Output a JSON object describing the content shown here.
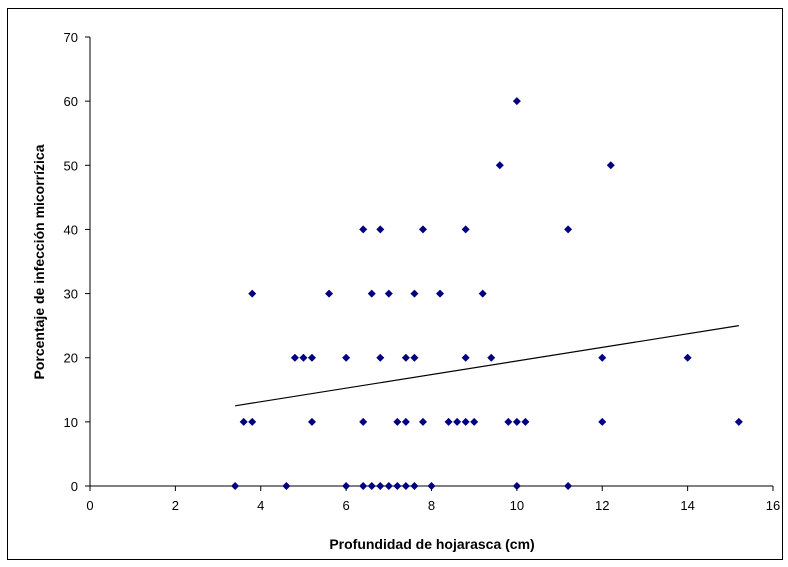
{
  "chart_data": {
    "type": "scatter",
    "xlabel": "Profundidad de hojarasca (cm)",
    "ylabel": "Porcentaje de infección micorrízica",
    "xlim": [
      0,
      16
    ],
    "ylim": [
      0,
      70
    ],
    "xticks": [
      "0",
      "2",
      "4",
      "6",
      "8",
      "10",
      "12",
      "14",
      "16"
    ],
    "yticks": [
      "0",
      "10",
      "20",
      "30",
      "40",
      "50",
      "60",
      "70"
    ],
    "grid": false,
    "legend": "none",
    "marker_color": "#000080",
    "trendline_color": "#000000",
    "series": [
      {
        "points": [
          [
            3.4,
            0
          ],
          [
            4.6,
            0
          ],
          [
            6.0,
            0
          ],
          [
            6.4,
            0
          ],
          [
            6.6,
            0
          ],
          [
            6.8,
            0
          ],
          [
            7.0,
            0
          ],
          [
            7.2,
            0
          ],
          [
            7.4,
            0
          ],
          [
            7.6,
            0
          ],
          [
            8.0,
            0
          ],
          [
            10.0,
            0
          ],
          [
            11.2,
            0
          ],
          [
            3.6,
            10
          ],
          [
            3.8,
            10
          ],
          [
            5.2,
            10
          ],
          [
            6.4,
            10
          ],
          [
            7.2,
            10
          ],
          [
            7.4,
            10
          ],
          [
            7.8,
            10
          ],
          [
            8.4,
            10
          ],
          [
            8.6,
            10
          ],
          [
            8.8,
            10
          ],
          [
            9.0,
            10
          ],
          [
            9.8,
            10
          ],
          [
            10.0,
            10
          ],
          [
            10.2,
            10
          ],
          [
            12.0,
            10
          ],
          [
            15.2,
            10
          ],
          [
            4.8,
            20
          ],
          [
            5.0,
            20
          ],
          [
            5.2,
            20
          ],
          [
            6.0,
            20
          ],
          [
            6.8,
            20
          ],
          [
            7.4,
            20
          ],
          [
            7.6,
            20
          ],
          [
            8.8,
            20
          ],
          [
            9.4,
            20
          ],
          [
            12.0,
            20
          ],
          [
            14.0,
            20
          ],
          [
            3.8,
            30
          ],
          [
            5.6,
            30
          ],
          [
            6.6,
            30
          ],
          [
            7.0,
            30
          ],
          [
            7.6,
            30
          ],
          [
            8.2,
            30
          ],
          [
            9.2,
            30
          ],
          [
            6.4,
            40
          ],
          [
            6.8,
            40
          ],
          [
            7.8,
            40
          ],
          [
            8.8,
            40
          ],
          [
            11.2,
            40
          ],
          [
            9.6,
            50
          ],
          [
            12.2,
            50
          ],
          [
            10.0,
            60
          ]
        ]
      }
    ],
    "trendline": {
      "x": [
        3.4,
        15.2
      ],
      "y": [
        12.5,
        25.0
      ]
    }
  }
}
